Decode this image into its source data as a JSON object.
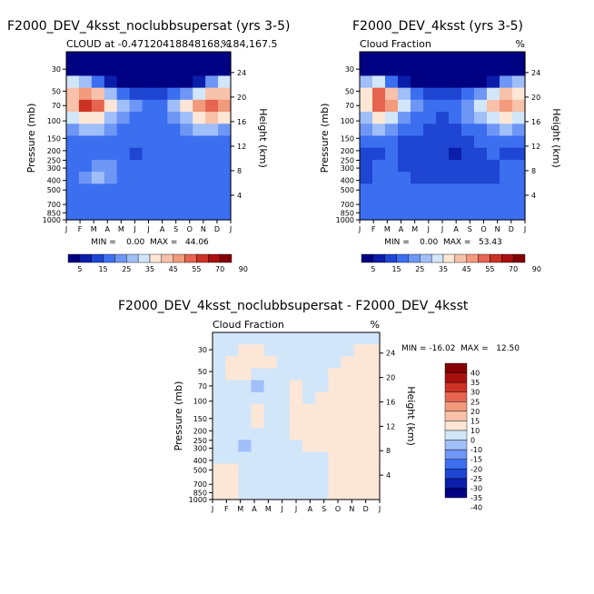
{
  "chart_data": [
    {
      "type": "heatmap",
      "title": "F2000_DEV_4ksst_noclubbsupersat (yrs 3-5)",
      "subtitle_left": "CLOUD at -0.47120418848168,-184,167.5",
      "subtitle_right": "%",
      "ylabel": "Pressure (mb)",
      "ylabel_right": "Height (km)",
      "x": [
        "J",
        "F",
        "M",
        "A",
        "M",
        "J",
        "J",
        "A",
        "S",
        "O",
        "N",
        "D",
        "J"
      ],
      "y_pressure_ticks": [
        30,
        50,
        70,
        100,
        150,
        200,
        250,
        300,
        400,
        500,
        700,
        850,
        1000
      ],
      "y_height_ticks": [
        4,
        8,
        12,
        16,
        20,
        24
      ],
      "ylim": [
        1000,
        20
      ],
      "stats": "MIN =    0.00  MAX =   44.06",
      "colorbar": {
        "labels": [
          "5",
          "15",
          "25",
          "35",
          "45",
          "55",
          "70",
          "90"
        ],
        "colors": [
          "#000082",
          "#0a1eaa",
          "#1e46d2",
          "#3c6ef0",
          "#6e96f5",
          "#a0bef8",
          "#d2e6fa",
          "#fce6d6",
          "#f8c2aa",
          "#f29a7c",
          "#e66450",
          "#cc3223",
          "#aa0f0f",
          "#820000"
        ]
      },
      "levels": [
        [
          0,
          0,
          0,
          0,
          0,
          0,
          0,
          0,
          0,
          0,
          0,
          0,
          0
        ],
        [
          0,
          0,
          0,
          0,
          0,
          0,
          0,
          0,
          0,
          0,
          0,
          0,
          0
        ],
        [
          6,
          5,
          3,
          1,
          0,
          0,
          0,
          0,
          0,
          0,
          1,
          4,
          6
        ],
        [
          8,
          9,
          8,
          5,
          3,
          2,
          2,
          2,
          3,
          4,
          6,
          8,
          8
        ],
        [
          8,
          11,
          10,
          7,
          5,
          4,
          3,
          3,
          5,
          7,
          9,
          10,
          9
        ],
        [
          6,
          7,
          7,
          5,
          4,
          3,
          3,
          3,
          4,
          5,
          7,
          8,
          7
        ],
        [
          4,
          5,
          5,
          4,
          3,
          3,
          3,
          3,
          3,
          4,
          5,
          5,
          4
        ],
        [
          3,
          3,
          3,
          3,
          3,
          3,
          3,
          3,
          3,
          3,
          3,
          3,
          3
        ],
        [
          3,
          3,
          3,
          3,
          3,
          2,
          3,
          3,
          3,
          3,
          3,
          3,
          3
        ],
        [
          3,
          3,
          4,
          4,
          3,
          3,
          3,
          3,
          3,
          3,
          3,
          3,
          3
        ],
        [
          3,
          4,
          5,
          4,
          3,
          3,
          3,
          3,
          3,
          3,
          3,
          3,
          3
        ],
        [
          3,
          3,
          3,
          3,
          3,
          3,
          3,
          3,
          3,
          3,
          3,
          3,
          3
        ],
        [
          3,
          3,
          3,
          3,
          3,
          3,
          3,
          3,
          3,
          3,
          3,
          3,
          3
        ],
        [
          3,
          3,
          3,
          3,
          3,
          3,
          3,
          3,
          3,
          3,
          3,
          3,
          3
        ]
      ]
    },
    {
      "type": "heatmap",
      "title": "F2000_DEV_4ksst (yrs 3-5)",
      "subtitle_left": "Cloud Fraction",
      "subtitle_right": "%",
      "ylabel": "Pressure (mb)",
      "ylabel_right": "Height (km)",
      "x": [
        "J",
        "F",
        "M",
        "A",
        "M",
        "J",
        "J",
        "A",
        "S",
        "O",
        "N",
        "D",
        "J"
      ],
      "y_pressure_ticks": [
        30,
        50,
        70,
        100,
        150,
        200,
        250,
        300,
        400,
        500,
        700,
        850,
        1000
      ],
      "y_height_ticks": [
        4,
        8,
        12,
        16,
        20,
        24
      ],
      "ylim": [
        1000,
        20
      ],
      "stats": "MIN =    0.00  MAX =   53.43",
      "colorbar": {
        "labels": [
          "5",
          "15",
          "25",
          "35",
          "45",
          "55",
          "70",
          "90"
        ],
        "colors": [
          "#000082",
          "#0a1eaa",
          "#1e46d2",
          "#3c6ef0",
          "#6e96f5",
          "#a0bef8",
          "#d2e6fa",
          "#fce6d6",
          "#f8c2aa",
          "#f29a7c",
          "#e66450",
          "#cc3223",
          "#aa0f0f",
          "#820000"
        ]
      },
      "levels": [
        [
          0,
          0,
          0,
          0,
          0,
          0,
          0,
          0,
          0,
          0,
          0,
          0,
          0
        ],
        [
          0,
          0,
          0,
          0,
          0,
          0,
          0,
          0,
          0,
          0,
          0,
          0,
          0
        ],
        [
          5,
          6,
          3,
          1,
          0,
          0,
          0,
          0,
          0,
          0,
          1,
          4,
          5
        ],
        [
          7,
          10,
          8,
          5,
          3,
          2,
          2,
          2,
          3,
          4,
          6,
          8,
          7
        ],
        [
          7,
          10,
          9,
          6,
          4,
          3,
          3,
          3,
          4,
          6,
          8,
          9,
          8
        ],
        [
          5,
          7,
          6,
          4,
          3,
          3,
          2,
          3,
          4,
          5,
          6,
          7,
          6
        ],
        [
          4,
          5,
          4,
          3,
          3,
          2,
          2,
          2,
          3,
          3,
          4,
          5,
          4
        ],
        [
          3,
          3,
          3,
          2,
          2,
          2,
          2,
          2,
          2,
          3,
          3,
          3,
          3
        ],
        [
          2,
          2,
          3,
          2,
          2,
          2,
          2,
          1,
          2,
          2,
          3,
          2,
          2
        ],
        [
          2,
          3,
          3,
          2,
          2,
          2,
          2,
          2,
          2,
          2,
          2,
          3,
          3
        ],
        [
          2,
          3,
          3,
          3,
          2,
          2,
          2,
          2,
          2,
          2,
          2,
          3,
          3
        ],
        [
          3,
          3,
          3,
          3,
          3,
          3,
          3,
          3,
          3,
          3,
          3,
          3,
          3
        ],
        [
          3,
          3,
          3,
          3,
          3,
          3,
          3,
          3,
          3,
          3,
          3,
          3,
          3
        ],
        [
          3,
          3,
          3,
          3,
          3,
          3,
          3,
          3,
          3,
          3,
          3,
          3,
          3
        ]
      ]
    },
    {
      "type": "heatmap",
      "title": "F2000_DEV_4ksst_noclubbsupersat - F2000_DEV_4ksst",
      "subtitle_left": "Cloud Fraction",
      "subtitle_right": "%",
      "ylabel": "Pressure (mb)",
      "ylabel_right": "Height (km)",
      "x": [
        "J",
        "F",
        "M",
        "A",
        "M",
        "J",
        "J",
        "A",
        "S",
        "O",
        "N",
        "D",
        "J"
      ],
      "y_pressure_ticks": [
        30,
        50,
        70,
        100,
        150,
        200,
        250,
        300,
        400,
        500,
        700,
        850,
        1000
      ],
      "y_height_ticks": [
        4,
        8,
        12,
        16,
        20,
        24
      ],
      "ylim": [
        1000,
        20
      ],
      "stats": "MIN = -16.02  MAX =   12.50",
      "colorbar": {
        "labels": [
          "40",
          "35",
          "30",
          "25",
          "20",
          "15",
          "10",
          "0",
          "-10",
          "-15",
          "-20",
          "-25",
          "-30",
          "-35",
          "-40"
        ],
        "colors": [
          "#820000",
          "#aa0f0f",
          "#cc3223",
          "#e66450",
          "#f29a7c",
          "#f8c2aa",
          "#fce6d6",
          "#d2e6fa",
          "#a0bef8",
          "#6e96f5",
          "#3c6ef0",
          "#1e46d2",
          "#0a1eaa",
          "#000082"
        ]
      },
      "levels": [
        [
          7,
          7,
          7,
          7,
          7,
          7,
          7,
          7,
          7,
          7,
          7,
          7,
          7
        ],
        [
          7,
          7,
          6,
          6,
          7,
          7,
          7,
          7,
          7,
          7,
          7,
          6,
          6
        ],
        [
          7,
          6,
          6,
          6,
          6,
          7,
          7,
          7,
          7,
          7,
          6,
          6,
          6
        ],
        [
          7,
          6,
          6,
          7,
          7,
          7,
          7,
          7,
          7,
          6,
          6,
          6,
          6
        ],
        [
          7,
          7,
          7,
          8,
          7,
          7,
          6,
          7,
          7,
          6,
          6,
          6,
          6
        ],
        [
          7,
          7,
          7,
          7,
          7,
          7,
          6,
          7,
          6,
          6,
          6,
          6,
          6
        ],
        [
          7,
          7,
          7,
          6,
          7,
          7,
          6,
          6,
          6,
          6,
          6,
          6,
          6
        ],
        [
          7,
          7,
          7,
          6,
          7,
          7,
          6,
          6,
          6,
          6,
          6,
          6,
          6
        ],
        [
          7,
          7,
          7,
          7,
          7,
          7,
          6,
          6,
          6,
          6,
          6,
          6,
          6
        ],
        [
          7,
          7,
          8,
          7,
          7,
          7,
          7,
          6,
          6,
          6,
          6,
          6,
          6
        ],
        [
          7,
          7,
          7,
          7,
          7,
          7,
          7,
          7,
          7,
          6,
          6,
          6,
          6
        ],
        [
          6,
          6,
          7,
          7,
          7,
          7,
          7,
          7,
          7,
          6,
          6,
          6,
          6
        ],
        [
          6,
          6,
          7,
          7,
          7,
          7,
          7,
          7,
          7,
          6,
          6,
          6,
          6
        ],
        [
          6,
          6,
          7,
          7,
          7,
          7,
          7,
          7,
          7,
          6,
          6,
          6,
          6
        ]
      ]
    }
  ]
}
